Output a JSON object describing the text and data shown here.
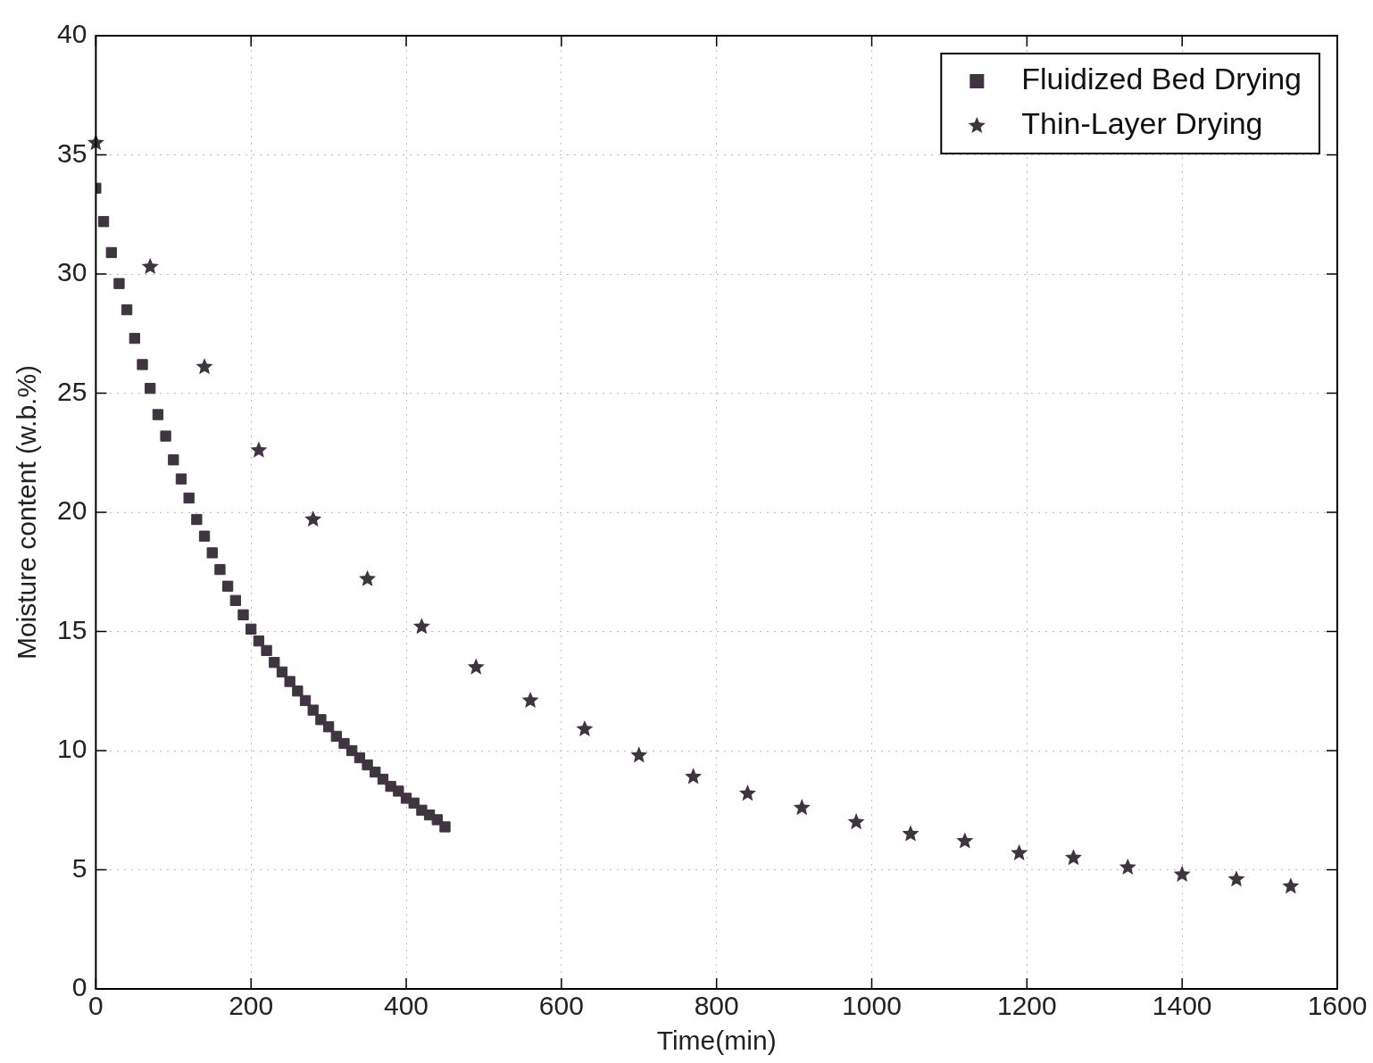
{
  "chart_data": {
    "type": "scatter",
    "xlabel": "Time(min)",
    "ylabel": "Moisture content (w.b.%)",
    "xlim": [
      0,
      1600
    ],
    "xticks": [
      0,
      200,
      400,
      600,
      800,
      1000,
      1200,
      1400,
      1600
    ],
    "ylim": [
      0,
      40
    ],
    "yticks": [
      0,
      5,
      10,
      15,
      20,
      25,
      30,
      35,
      40
    ],
    "grid": true,
    "legend": "top right",
    "series": [
      {
        "name": "Fluidized Bed Drying",
        "color": "#3f3540",
        "marker": "square",
        "x": [
          0,
          10,
          20,
          30,
          40,
          50,
          60,
          70,
          80,
          90,
          100,
          110,
          120,
          130,
          140,
          150,
          160,
          170,
          180,
          190,
          200,
          210,
          220,
          230,
          240,
          250,
          260,
          270,
          280,
          290,
          300,
          310,
          320,
          330,
          340,
          350,
          360,
          370,
          380,
          390,
          400,
          410,
          420,
          430,
          440,
          450
        ],
        "values": [
          33.6,
          32.2,
          30.9,
          29.6,
          28.5,
          27.3,
          26.2,
          25.2,
          24.1,
          23.2,
          22.2,
          21.4,
          20.6,
          19.7,
          19.0,
          18.3,
          17.6,
          16.9,
          16.3,
          15.7,
          15.1,
          14.6,
          14.2,
          13.7,
          13.3,
          12.9,
          12.5,
          12.1,
          11.7,
          11.3,
          11.0,
          10.6,
          10.3,
          10.0,
          9.7,
          9.4,
          9.1,
          8.8,
          8.5,
          8.3,
          8.0,
          7.8,
          7.5,
          7.3,
          7.1,
          6.8
        ]
      },
      {
        "name": "Thin-Layer Drying",
        "color": "#3f3540",
        "marker": "star",
        "x": [
          0,
          70,
          140,
          210,
          280,
          350,
          420,
          490,
          560,
          630,
          700,
          770,
          840,
          910,
          980,
          1050,
          1120,
          1190,
          1260,
          1330,
          1400,
          1470,
          1540
        ],
        "values": [
          35.5,
          30.3,
          26.1,
          22.6,
          19.7,
          17.2,
          15.2,
          13.5,
          12.1,
          10.9,
          9.8,
          8.9,
          8.2,
          7.6,
          7.0,
          6.5,
          6.2,
          5.7,
          5.5,
          5.1,
          4.8,
          4.6,
          4.3
        ]
      }
    ]
  }
}
